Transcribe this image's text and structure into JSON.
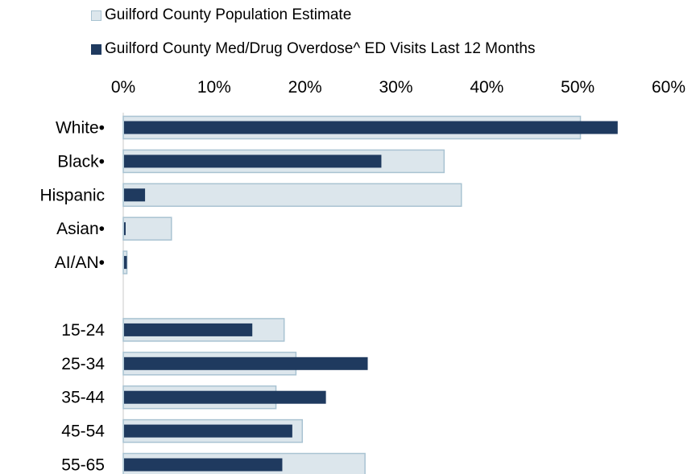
{
  "chart_data": {
    "type": "bar",
    "orientation": "horizontal",
    "categories": [
      "White•",
      "Black•",
      "Hispanic",
      "Asian•",
      "AI/AN•",
      "",
      "15-24",
      "25-34",
      "35-44",
      "45-54",
      "55-65"
    ],
    "series": [
      {
        "name": "Guilford County Population Estimate",
        "color": "#dce6ec",
        "border": "#a9c3d2",
        "values": [
          50.3,
          35.3,
          37.2,
          5.3,
          0.4,
          null,
          17.7,
          19.0,
          16.8,
          19.7,
          26.6
        ]
      },
      {
        "name": "Guilford County Med/Drug Overdose^ ED Visits Last 12 Months",
        "color": "#1f3a5f",
        "values": [
          54.4,
          28.4,
          2.4,
          0.2,
          0.4,
          null,
          14.2,
          26.9,
          22.3,
          18.6,
          17.5
        ]
      }
    ],
    "xlim": [
      0,
      60
    ],
    "xticks": [
      "0%",
      "10%",
      "20%",
      "30%",
      "40%",
      "50%",
      "60%"
    ],
    "x_axis_position": "top",
    "legend_position": "top",
    "grid": false
  }
}
